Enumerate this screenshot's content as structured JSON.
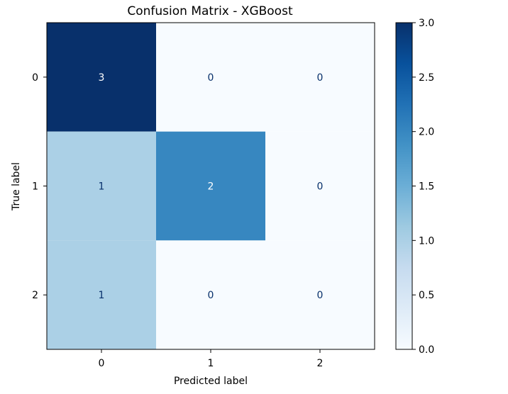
{
  "chart_data": {
    "type": "heatmap",
    "title": "Confusion Matrix - XGBoost",
    "xlabel": "Predicted label",
    "ylabel": "True label",
    "x_categories": [
      "0",
      "1",
      "2"
    ],
    "y_categories": [
      "0",
      "1",
      "2"
    ],
    "values": [
      [
        3,
        0,
        0
      ],
      [
        1,
        2,
        0
      ],
      [
        1,
        0,
        0
      ]
    ],
    "colormap": "Blues",
    "colorbar": {
      "range": [
        0.0,
        3.0
      ],
      "ticks": [
        "0.0",
        "0.5",
        "1.0",
        "1.5",
        "2.0",
        "2.5",
        "3.0"
      ]
    }
  }
}
